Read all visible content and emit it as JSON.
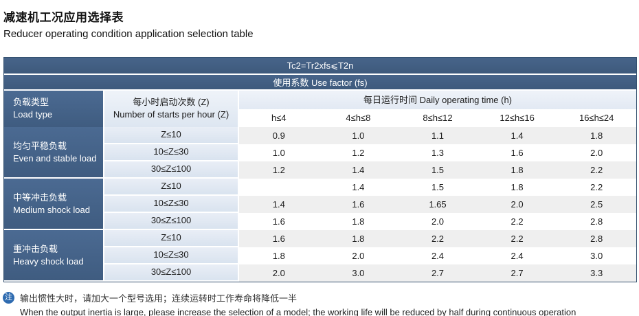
{
  "page": {
    "title_zh": "减速机工况应用选择表",
    "title_en": "Reducer operating condition application selection table"
  },
  "table": {
    "formula": "Tc2=Tr2xfs⩽T2n",
    "use_factor": "使用系数 Use factor (fs)",
    "load_type_header": {
      "zh": "负载类型",
      "en": "Load type"
    },
    "starts_header": {
      "zh": "每小时启动次数 (Z)",
      "en": "Number of starts per hour (Z)"
    },
    "daily_time_header": "每日运行时间 Daily operating time (h)",
    "time_columns": [
      "h≤4",
      "4≤h≤8",
      "8≤h≤12",
      "12≤h≤16",
      "16≤h≤24"
    ],
    "groups": [
      {
        "label_zh": "均匀平稳负载",
        "label_en": "Even and stable load",
        "rows": [
          {
            "z": "Z≤10",
            "values": [
              "0.9",
              "1.0",
              "1.1",
              "1.4",
              "1.8"
            ]
          },
          {
            "z": "10≤Z≤30",
            "values": [
              "1.0",
              "1.2",
              "1.3",
              "1.6",
              "2.0"
            ]
          },
          {
            "z": "30≤Z≤100",
            "values": [
              "1.2",
              "1.4",
              "1.5",
              "1.8",
              "2.2"
            ]
          }
        ]
      },
      {
        "label_zh": "中等冲击负载",
        "label_en": "Medium shock load",
        "rows": [
          {
            "z": "Z≤10",
            "values": [
              "",
              "1.4",
              "1.5",
              "1.8",
              "2.2"
            ]
          },
          {
            "z": "10≤Z≤30",
            "values": [
              "1.4",
              "1.6",
              "1.65",
              "2.0",
              "2.5"
            ]
          },
          {
            "z": "30≤Z≤100",
            "values": [
              "1.6",
              "1.8",
              "2.0",
              "2.2",
              "2.8"
            ]
          }
        ]
      },
      {
        "label_zh": "重冲击负载",
        "label_en": "Heavy shock load",
        "rows": [
          {
            "z": "Z≤10",
            "values": [
              "1.6",
              "1.8",
              "2.2",
              "2.2",
              "2.8"
            ]
          },
          {
            "z": "10≤Z≤30",
            "values": [
              "1.8",
              "2.0",
              "2.4",
              "2.4",
              "3.0"
            ]
          },
          {
            "z": "30≤Z≤100",
            "values": [
              "2.0",
              "3.0",
              "2.7",
              "2.7",
              "3.3"
            ]
          }
        ]
      }
    ]
  },
  "note": {
    "badge": "注",
    "zh": "输出惯性大时，请加大一个型号选用；连续运转时工作寿命将降低一半",
    "en": "When the output inertia is large, please increase the selection of a model; the working life will be reduced by half during continuous operation"
  },
  "colors": {
    "header_blue": "#3f5c80",
    "z_column_blue": "#dde6f1",
    "stripe_gray": "#efefef",
    "note_badge_blue": "#2e6bb0"
  }
}
